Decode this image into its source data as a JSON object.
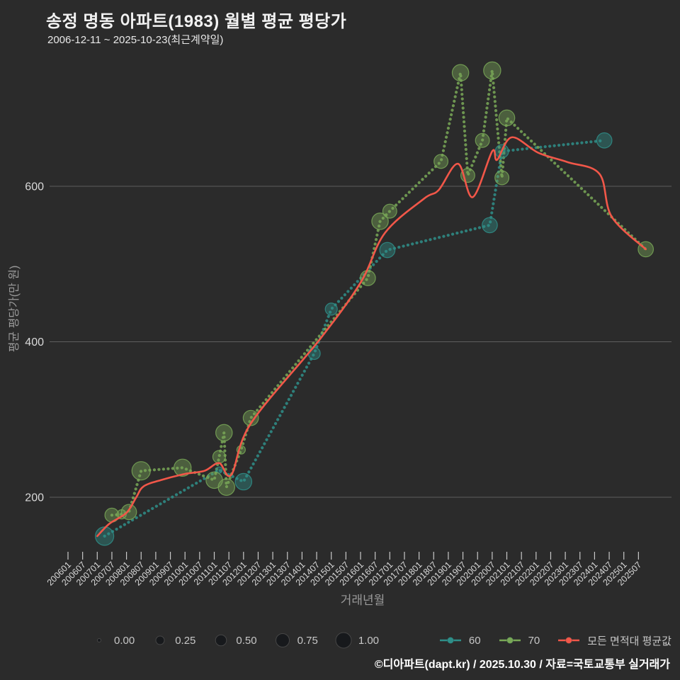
{
  "header": {
    "title": "송정 명동 아파트(1983) 월별 평균 평당가",
    "subtitle": "2006-12-11 ~ 2025-10-23(최근계약일)"
  },
  "footer": {
    "credit": "©디아파트(dapt.kr) / 2025.10.30 / 자료=국토교통부 실거래가"
  },
  "colors": {
    "background": "#2b2b2b",
    "grid": "#5e5e5e",
    "tick_text": "#d9d9d9",
    "axis_title": "#9a9a9a",
    "series_60": "#2f8f89",
    "series_70": "#79a857",
    "series_avg": "#f25749",
    "size_bubble_fill": "#17191c",
    "size_bubble_stroke": "#464646"
  },
  "chart_data": {
    "type": "scatter",
    "title": "송정 명동 아파트(1983) 월별 평균 평당가",
    "subtitle": "2006-12-11 ~ 2025-10-23(최근계약일)",
    "xlabel": "거래년월",
    "ylabel": "평균 평당가(만 원)",
    "legend_position": "bottom",
    "grid": "horizontal-only",
    "y_ticks": [
      200,
      400,
      600
    ],
    "ylim": [
      95,
      790
    ],
    "x_ticks": [
      "200601",
      "200607",
      "200701",
      "200707",
      "200801",
      "200807",
      "200901",
      "200907",
      "201001",
      "201007",
      "201101",
      "201107",
      "201201",
      "201207",
      "201301",
      "201307",
      "201401",
      "201407",
      "201501",
      "201507",
      "201601",
      "201607",
      "201701",
      "201707",
      "201801",
      "201807",
      "201901",
      "201907",
      "202001",
      "202007",
      "202101",
      "202107",
      "202201",
      "202207",
      "202301",
      "202307",
      "202401",
      "202407",
      "202501",
      "202507"
    ],
    "size_legend": {
      "labels": [
        "0.00",
        "0.25",
        "0.50",
        "0.75",
        "1.00"
      ]
    },
    "series": [
      {
        "name": "60",
        "type": "scatter-line",
        "color": "#2f8f89",
        "points": [
          [
            "2007-04",
            150,
            1.0
          ],
          [
            "2011-03",
            235,
            0.05
          ],
          [
            "2012-01",
            220,
            0.85
          ],
          [
            "2014-06",
            385,
            0.5
          ],
          [
            "2015-01",
            442,
            0.5
          ],
          [
            "2016-12",
            518,
            0.75
          ],
          [
            "2020-06",
            550,
            0.75
          ],
          [
            "2020-11",
            645,
            0.6
          ],
          [
            "2024-05",
            659,
            0.75
          ]
        ]
      },
      {
        "name": "70",
        "type": "scatter-line",
        "color": "#79a857",
        "points": [
          [
            "2007-07",
            177,
            0.65
          ],
          [
            "2007-11",
            178,
            0.28
          ],
          [
            "2008-02",
            181,
            0.75
          ],
          [
            "2008-07",
            234,
            1.0
          ],
          [
            "2009-12",
            238,
            0.9
          ],
          [
            "2011-01",
            222,
            0.85
          ],
          [
            "2011-03",
            252,
            0.55
          ],
          [
            "2011-05",
            283,
            0.85
          ],
          [
            "2011-06",
            213,
            0.85
          ],
          [
            "2011-12",
            261,
            0.22
          ],
          [
            "2012-04",
            302,
            0.75
          ],
          [
            "2016-04",
            482,
            0.75
          ],
          [
            "2016-09",
            555,
            0.85
          ],
          [
            "2017-01",
            568,
            0.65
          ],
          [
            "2018-10",
            632,
            0.65
          ],
          [
            "2019-06",
            746,
            0.85
          ],
          [
            "2019-09",
            614,
            0.65
          ],
          [
            "2020-03",
            659,
            0.65
          ],
          [
            "2020-07",
            749,
            0.9
          ],
          [
            "2020-11",
            611,
            0.65
          ],
          [
            "2021-01",
            688,
            0.8
          ],
          [
            "2025-10",
            519,
            0.75
          ]
        ]
      },
      {
        "name": "모든 면적대 평균값",
        "type": "line",
        "color": "#f25749",
        "points": [
          [
            "2007-01",
            150
          ],
          [
            "2007-06",
            166
          ],
          [
            "2008-01",
            180
          ],
          [
            "2008-05",
            200
          ],
          [
            "2008-08",
            214
          ],
          [
            "2009-03",
            222
          ],
          [
            "2010-01",
            230
          ],
          [
            "2010-09",
            234
          ],
          [
            "2011-03",
            244
          ],
          [
            "2011-08",
            229
          ],
          [
            "2012-04",
            295
          ],
          [
            "2014-08",
            402
          ],
          [
            "2016-01",
            476
          ],
          [
            "2016-11",
            540
          ],
          [
            "2018-03",
            584
          ],
          [
            "2018-09",
            595
          ],
          [
            "2019-05",
            629
          ],
          [
            "2019-11",
            586
          ],
          [
            "2020-07",
            645
          ],
          [
            "2020-09",
            634
          ],
          [
            "2021-03",
            663
          ],
          [
            "2022-02",
            643
          ],
          [
            "2023-02",
            631
          ],
          [
            "2024-03",
            616
          ],
          [
            "2024-08",
            561
          ],
          [
            "2025-10",
            519
          ]
        ]
      }
    ]
  }
}
